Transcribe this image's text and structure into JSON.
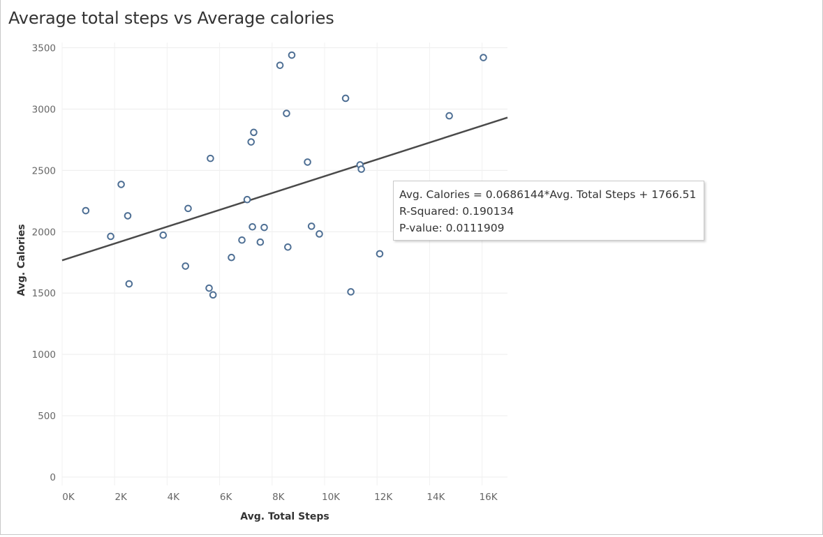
{
  "title": "Average total steps vs Average calories",
  "tooltip": {
    "equation": "Avg. Calories = 0.0686144*Avg. Total Steps + 1766.51",
    "r_squared": "R-Squared: 0.190134",
    "p_value": "P-value: 0.0111909"
  },
  "chart_data": {
    "type": "scatter",
    "title": "Average total steps vs Average calories",
    "xlabel": "Avg. Total Steps",
    "ylabel": "Avg. Calories",
    "xlim": [
      0,
      17000
    ],
    "ylim": [
      0,
      3500
    ],
    "x_ticks": [
      0,
      2000,
      4000,
      6000,
      8000,
      10000,
      12000,
      14000,
      16000
    ],
    "x_tick_labels": [
      "0K",
      "2K",
      "4K",
      "6K",
      "8K",
      "10K",
      "12K",
      "14K",
      "16K"
    ],
    "y_ticks": [
      0,
      500,
      1000,
      1500,
      2000,
      2500,
      3000,
      3500
    ],
    "y_tick_labels": [
      "0",
      "500",
      "1000",
      "1500",
      "2000",
      "2500",
      "3000",
      "3500"
    ],
    "grid": true,
    "marker_color": "#4e6f94",
    "trend_color": "#4a4a4a",
    "trend_line": {
      "slope": 0.0686144,
      "intercept": 1766.51
    },
    "points": [
      {
        "x": 900,
        "y": 2172
      },
      {
        "x": 1850,
        "y": 1962
      },
      {
        "x": 2250,
        "y": 2386
      },
      {
        "x": 2500,
        "y": 2130
      },
      {
        "x": 2550,
        "y": 1575
      },
      {
        "x": 3850,
        "y": 1972
      },
      {
        "x": 4700,
        "y": 1720
      },
      {
        "x": 4800,
        "y": 2190
      },
      {
        "x": 5600,
        "y": 1540
      },
      {
        "x": 5650,
        "y": 2598
      },
      {
        "x": 5750,
        "y": 1485
      },
      {
        "x": 6450,
        "y": 1790
      },
      {
        "x": 6850,
        "y": 1932
      },
      {
        "x": 7050,
        "y": 2262
      },
      {
        "x": 7200,
        "y": 2732
      },
      {
        "x": 7250,
        "y": 2040
      },
      {
        "x": 7300,
        "y": 2810
      },
      {
        "x": 7550,
        "y": 1915
      },
      {
        "x": 7700,
        "y": 2035
      },
      {
        "x": 8300,
        "y": 3357
      },
      {
        "x": 8550,
        "y": 2965
      },
      {
        "x": 8600,
        "y": 1875
      },
      {
        "x": 8750,
        "y": 3440
      },
      {
        "x": 9350,
        "y": 2568
      },
      {
        "x": 9500,
        "y": 2045
      },
      {
        "x": 9800,
        "y": 1982
      },
      {
        "x": 10800,
        "y": 3088
      },
      {
        "x": 11000,
        "y": 1510
      },
      {
        "x": 11350,
        "y": 2545
      },
      {
        "x": 11400,
        "y": 2510
      },
      {
        "x": 12100,
        "y": 1820
      },
      {
        "x": 14750,
        "y": 2945
      },
      {
        "x": 16050,
        "y": 3420
      }
    ]
  }
}
